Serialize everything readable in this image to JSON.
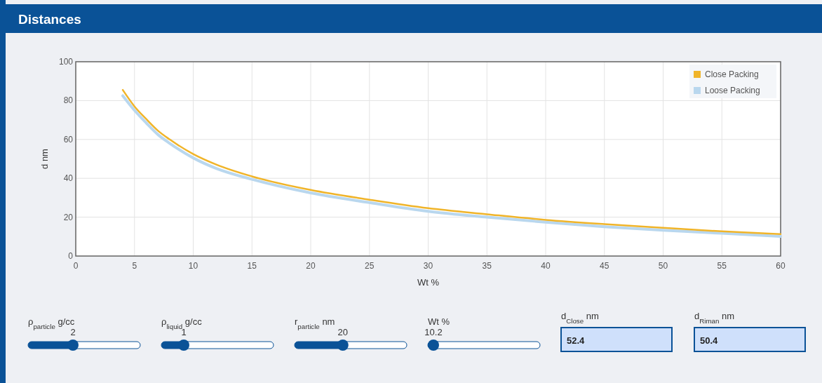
{
  "chart_data": {
    "type": "line",
    "title": "Distances",
    "xlabel": "Wt %",
    "ylabel": "d nm",
    "xlim": [
      0,
      60
    ],
    "xticks": [
      0,
      5,
      10,
      15,
      20,
      25,
      30,
      35,
      40,
      45,
      50,
      55,
      60
    ],
    "ylim": [
      0,
      100
    ],
    "yticks": [
      0,
      20,
      40,
      60,
      80,
      100
    ],
    "grid": true,
    "legend": "top right",
    "marker": "none",
    "line_style": "solid",
    "series": [
      {
        "name": "Close Packing",
        "color": "#f0b429",
        "x": [
          4,
          5,
          6,
          7,
          8,
          10,
          12,
          15,
          20,
          25,
          30,
          35,
          40,
          45,
          50,
          55,
          60
        ],
        "values": [
          85.5,
          77,
          70.5,
          64.5,
          60,
          52.5,
          47,
          41,
          34,
          29,
          24.6,
          21.5,
          18.6,
          16.4,
          14.5,
          12.7,
          11.3
        ]
      },
      {
        "name": "Loose Packing",
        "color": "#b9d7ee",
        "x": [
          4,
          5,
          6,
          7,
          8,
          10,
          12,
          15,
          20,
          25,
          30,
          35,
          40,
          45,
          50,
          55,
          60
        ],
        "values": [
          82.5,
          75,
          68.5,
          62.5,
          58,
          50.5,
          45,
          39.5,
          32.5,
          27.5,
          23,
          20,
          17.4,
          15.1,
          13.3,
          11.7,
          10.1
        ]
      }
    ],
    "annotations": [
      "ρ$_{particle}$ g/cc",
      "2",
      "ρ$_{liquid}$ g/cc",
      "1",
      "r$_{particle}$ nm",
      "20",
      "Wt %",
      "10.2",
      "d$_{Close}$ nm",
      "52.4",
      "d$_{Riman}$ nm",
      "50.4"
    ]
  }
}
